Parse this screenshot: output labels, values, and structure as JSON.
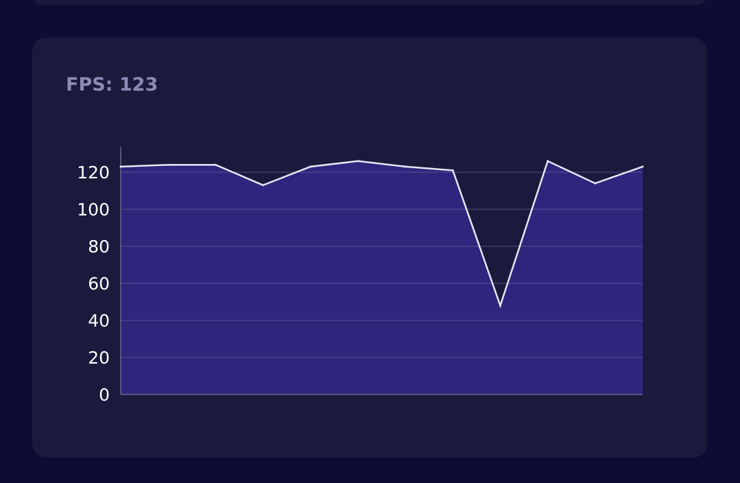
{
  "fps_panel": {
    "title": "FPS: 123"
  },
  "colors": {
    "page_background": "#0d0c35",
    "card_background": "#1a1a3d",
    "title_text": "#8e89b5",
    "area_fill": "#2e267d",
    "line": "#e8e6f5",
    "axis": "#6b6893",
    "grid": "#5a5690"
  },
  "chart_data": {
    "type": "area",
    "title": "",
    "xlabel": "",
    "ylabel": "",
    "x": [
      0,
      1,
      2,
      3,
      4,
      5,
      6,
      7,
      8,
      9,
      10,
      11
    ],
    "series": [
      {
        "values": [
          123,
          124,
          124,
          113,
          123,
          126,
          123,
          121,
          48,
          126,
          114,
          123
        ]
      }
    ],
    "ylim": [
      0,
      130
    ],
    "yticks": [
      0,
      20,
      40,
      60,
      80,
      100,
      120
    ],
    "grid": true,
    "legend": "none"
  }
}
